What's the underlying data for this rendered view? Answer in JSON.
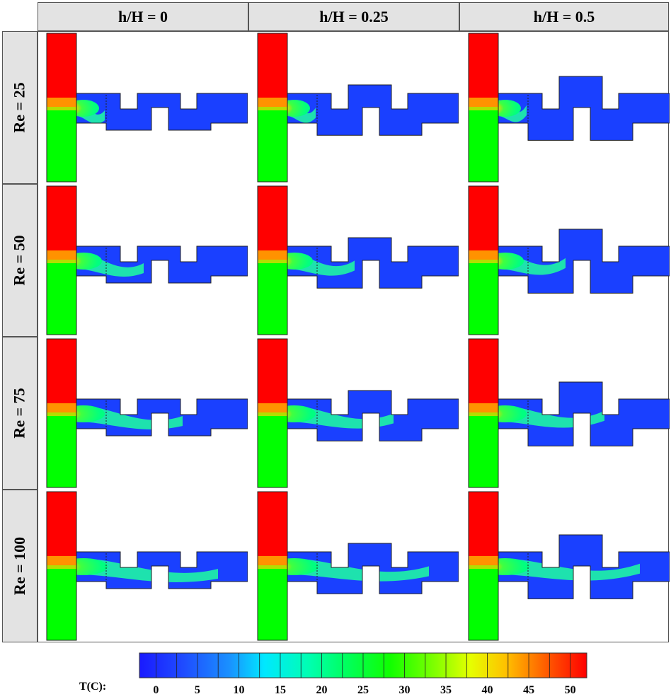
{
  "columns": [
    "h/H = 0",
    "h/H = 0.25",
    "h/H = 0.5"
  ],
  "rows": [
    "Re = 25",
    "Re = 50",
    "Re = 75",
    "Re = 100"
  ],
  "legend": {
    "label": "T(C):",
    "ticks": [
      "0",
      "5",
      "10",
      "15",
      "20",
      "25",
      "30",
      "35",
      "40",
      "45",
      "50"
    ],
    "range": [
      -2,
      52
    ],
    "colors": [
      "#1a1aff",
      "#1f5cff",
      "#00d8ff",
      "#00ffb0",
      "#00ff40",
      "#1aff00",
      "#66ff00",
      "#ccff00",
      "#ffd000",
      "#ff7000",
      "#ff0000"
    ]
  },
  "inlet_colors": {
    "hot": "#ff0000",
    "cold": "#00ff00"
  }
}
